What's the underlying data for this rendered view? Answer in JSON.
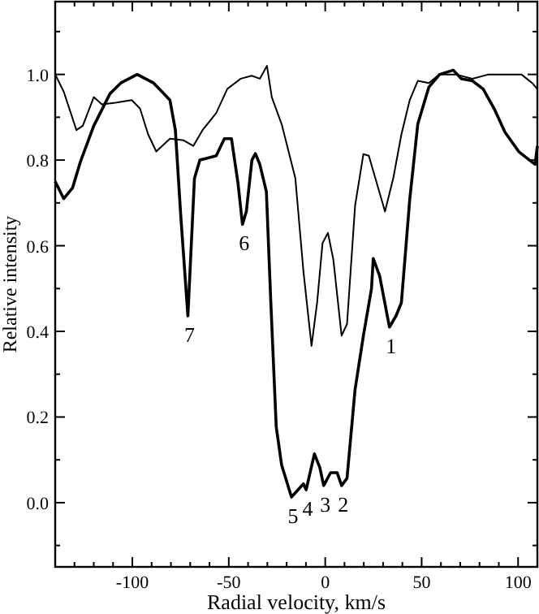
{
  "chart_data": {
    "type": "line",
    "xlabel": "Radial velocity, km/s",
    "ylabel": "Relative intensity",
    "xlim": [
      -140,
      110
    ],
    "ylim": [
      -0.15,
      1.17
    ],
    "xticks": [
      {
        "value": -140,
        "label": null
      },
      {
        "value": -130,
        "label": null
      },
      {
        "value": -120,
        "label": null
      },
      {
        "value": -110,
        "label": null
      },
      -100,
      {
        "value": -90,
        "label": null
      },
      {
        "value": -80,
        "label": null
      },
      {
        "value": -70,
        "label": null
      },
      {
        "value": -60,
        "label": null
      },
      -50,
      {
        "value": -40,
        "label": null
      },
      {
        "value": -30,
        "label": null
      },
      {
        "value": -20,
        "label": null
      },
      {
        "value": -10,
        "label": null
      },
      0,
      {
        "value": 10,
        "label": null
      },
      {
        "value": 20,
        "label": null
      },
      {
        "value": 30,
        "label": null
      },
      {
        "value": 40,
        "label": null
      },
      50,
      {
        "value": 60,
        "label": null
      },
      {
        "value": 70,
        "label": null
      },
      {
        "value": 80,
        "label": null
      },
      {
        "value": 90,
        "label": null
      },
      100,
      {
        "value": 110,
        "label": null
      }
    ],
    "yticks": [
      {
        "value": -0.1,
        "label": null
      },
      {
        "value": 0,
        "label": "0.0"
      },
      {
        "value": 0.1,
        "label": null
      },
      0.2,
      {
        "value": 0.3,
        "label": null
      },
      0.4,
      {
        "value": 0.5,
        "label": null
      },
      0.6,
      {
        "value": 0.7,
        "label": null
      },
      0.8,
      {
        "value": 0.9,
        "label": null
      },
      {
        "value": 1,
        "label": "1.0"
      },
      {
        "value": 1.1,
        "label": null
      }
    ],
    "grid": false,
    "marker": "none",
    "line_style": "solid",
    "series": [
      {
        "color": "#000000",
        "x": [
          -140,
          -135.6,
          -131,
          -127,
          -120,
          -111.6,
          -106,
          -97.5,
          -89,
          -84.7,
          -80.5,
          -77.7,
          -74.9,
          -71.2,
          -67.8,
          -65,
          -56.5,
          -52.3,
          -48.6,
          -45.2,
          -42.9,
          -40.9,
          -38,
          -36.2,
          -33.9,
          -30.5,
          -28.2,
          -25.4,
          -22.6,
          -17.5,
          -11.3,
          -9.9,
          -5.6,
          -2.8,
          -0.8,
          2.8,
          6.2,
          8.5,
          11.3,
          15.5,
          19.8,
          24,
          24.9,
          28.2,
          33.3,
          36.7,
          39.5,
          43.8,
          48,
          53.7,
          59.3,
          66.4,
          70.6,
          76.3,
          81.9,
          87.6,
          93.2,
          100.3,
          105.9,
          108.8,
          110
        ],
        "values": [
          0.75,
          0.71,
          0.735,
          0.795,
          0.88,
          0.955,
          0.98,
          1.0,
          0.98,
          0.96,
          0.94,
          0.87,
          0.67,
          0.436,
          0.757,
          0.8,
          0.81,
          0.85,
          0.85,
          0.745,
          0.65,
          0.68,
          0.8,
          0.815,
          0.79,
          0.726,
          0.467,
          0.177,
          0.088,
          0.013,
          0.044,
          0.03,
          0.114,
          0.082,
          0.04,
          0.07,
          0.07,
          0.04,
          0.057,
          0.265,
          0.39,
          0.5,
          0.57,
          0.53,
          0.41,
          0.436,
          0.467,
          0.707,
          0.884,
          0.97,
          1.0,
          1.01,
          0.99,
          0.985,
          0.966,
          0.92,
          0.865,
          0.82,
          0.8,
          0.79,
          0.833
        ]
      },
      {
        "color": "#000000",
        "x": [
          -140,
          -135.6,
          -129,
          -125.7,
          -120,
          -115.8,
          -108.8,
          -100.3,
          -96,
          -91.8,
          -87.6,
          -80.5,
          -73.4,
          -68.4,
          -63.6,
          -56.5,
          -50.8,
          -43.8,
          -38.1,
          -33.9,
          -30.2,
          -27.7,
          -22.6,
          -15.5,
          -11.3,
          -7.1,
          -4.2,
          -1.4,
          1.4,
          4.2,
          8.5,
          11.3,
          15.5,
          19.8,
          22.6,
          26.8,
          31,
          35.3,
          39.5,
          43.8,
          48,
          53.7,
          59.3,
          67.8,
          76.3,
          84.7,
          93.2,
          101.7,
          107.3,
          110
        ],
        "values": [
          1.0,
          0.96,
          0.87,
          0.88,
          0.947,
          0.93,
          0.934,
          0.94,
          0.92,
          0.86,
          0.82,
          0.85,
          0.846,
          0.833,
          0.87,
          0.91,
          0.966,
          0.99,
          0.997,
          0.99,
          1.02,
          0.947,
          0.884,
          0.758,
          0.54,
          0.366,
          0.467,
          0.606,
          0.63,
          0.568,
          0.39,
          0.417,
          0.694,
          0.814,
          0.81,
          0.745,
          0.68,
          0.758,
          0.86,
          0.94,
          0.985,
          0.98,
          1.0,
          1.0,
          0.99,
          1.0,
          1.0,
          1.0,
          0.98,
          0.966
        ]
      }
    ],
    "annotations": [
      {
        "text": "1",
        "x": 33.3,
        "y": 0.41
      },
      {
        "text": "2",
        "x": 8.5,
        "y": 0.04
      },
      {
        "text": "3",
        "x": -0.8,
        "y": 0.04
      },
      {
        "text": "4",
        "x": -9.9,
        "y": 0.03
      },
      {
        "text": "5",
        "x": -17.5,
        "y": 0.013
      },
      {
        "text": "6",
        "x": -42.9,
        "y": 0.65
      },
      {
        "text": "7",
        "x": -71.2,
        "y": 0.436
      }
    ]
  }
}
